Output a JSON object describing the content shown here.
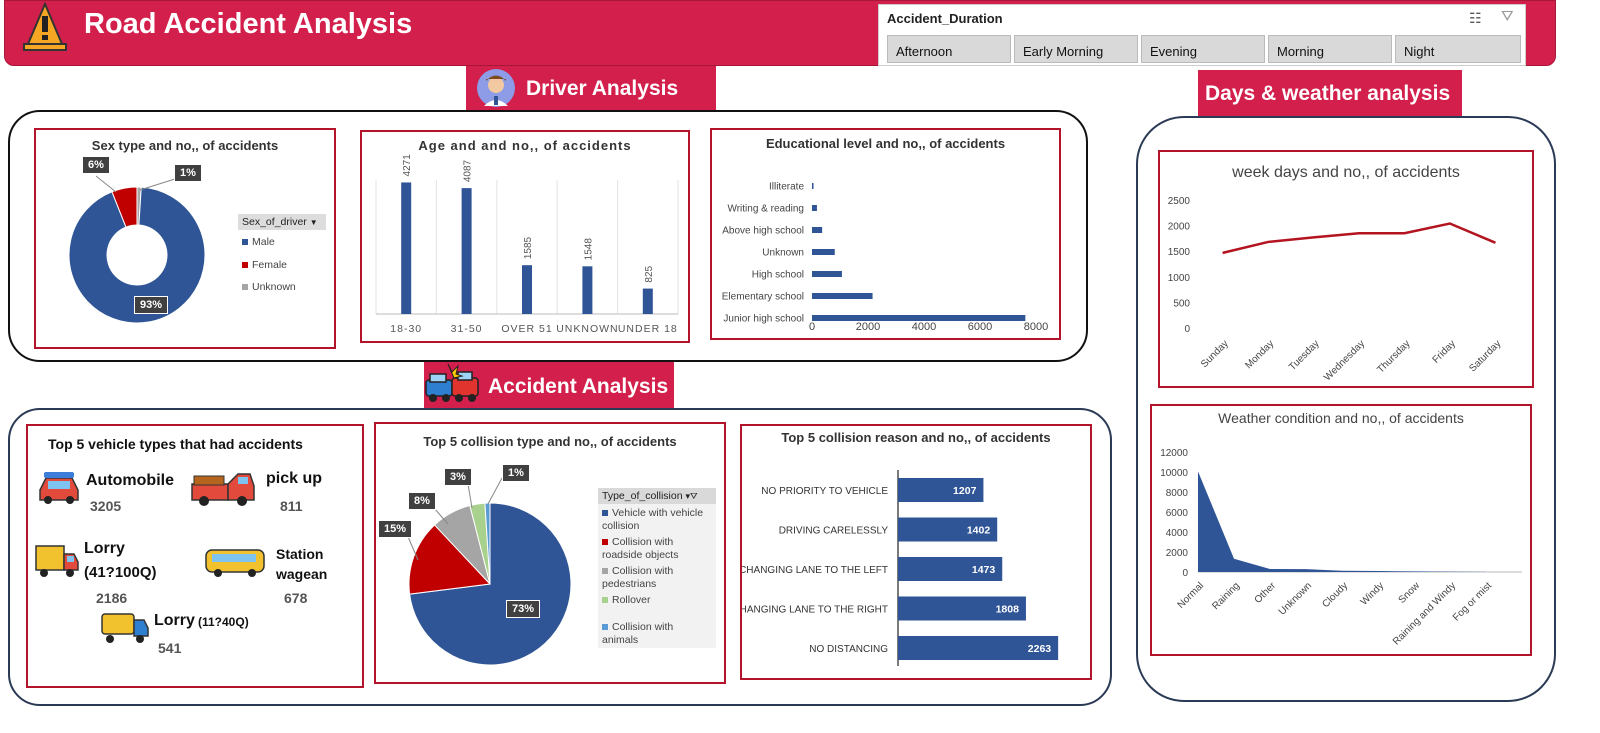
{
  "header": {
    "title": "Road Accident Analysis"
  },
  "slicer": {
    "title": "Accident_Duration",
    "options": [
      "Afternoon",
      "Early Morning",
      "Evening",
      "Morning",
      "Night"
    ]
  },
  "sections": {
    "driver": "Driver Analysis",
    "accident": "Accident Analysis",
    "days": "Days & weather analysis"
  },
  "colors": {
    "accent": "#d31f4b",
    "blue": "#2f5597",
    "red": "#c00000",
    "gray": "#a5a5a5",
    "green": "#a9d18e",
    "lightblue": "#5b9bd5"
  },
  "sex_legend_header": "Sex_of_driver",
  "collision_legend_header": "Type_of_collision",
  "vehicles": {
    "title": "Top 5 vehicle types that had accidents",
    "items": [
      {
        "name": "Automobile",
        "value": "3205"
      },
      {
        "name": "pick up",
        "value": "811"
      },
      {
        "name": "Lorry",
        "name2": "(41?100Q)",
        "value": "2186"
      },
      {
        "name": "Station",
        "name2": "wagean",
        "value": "678"
      },
      {
        "name": "Lorry",
        "name2": "(11?40Q)",
        "value": "541"
      }
    ]
  },
  "chart_data": [
    {
      "type": "pie",
      "variant": "donut",
      "title": "Sex type and no,, of accidents",
      "categories": [
        "Male",
        "Female",
        "Unknown"
      ],
      "values": [
        93,
        6,
        1
      ],
      "labels": [
        "93%",
        "6%",
        "1%"
      ]
    },
    {
      "type": "bar",
      "title": "Age and and no,, of accidents",
      "categories": [
        "18-30",
        "31-50",
        "OVER 51",
        "UNKNOWN",
        "UNDER 18"
      ],
      "values": [
        4271,
        4087,
        1585,
        1548,
        825
      ],
      "ylim": [
        0,
        5000
      ]
    },
    {
      "type": "bar",
      "orientation": "horizontal",
      "title": "Educational level and no,, of accidents",
      "categories": [
        "Illiterate",
        "Writing & reading",
        "Above high school",
        "Unknown",
        "High school",
        "Elementary school",
        "Junior high school"
      ],
      "values": [
        45,
        176,
        362,
        813,
        1069,
        2163,
        7619
      ],
      "xlim": [
        0,
        8000
      ],
      "xticks": [
        "0",
        "2000",
        "4000",
        "6000",
        "8000"
      ]
    },
    {
      "type": "pie",
      "title": "Top 5 collision type and no,, of accidents",
      "categories": [
        "Vehicle with vehicle collision",
        "Collision with roadside objects",
        "Collision with pedestrians",
        "Rollover",
        "Collision with animals"
      ],
      "values": [
        73,
        15,
        8,
        3,
        1
      ],
      "labels": [
        "73%",
        "15%",
        "8%",
        "3%",
        "1%"
      ]
    },
    {
      "type": "bar",
      "orientation": "horizontal",
      "title": "Top 5 collision reason and no,, of accidents",
      "categories": [
        "NO PRIORITY TO VEHICLE",
        "DRIVING CARELESSLY",
        "CHANGING LANE TO THE LEFT",
        "CHANGING LANE TO THE RIGHT",
        "NO DISTANCING"
      ],
      "values": [
        1207,
        1402,
        1473,
        1808,
        2263
      ],
      "xlim": [
        0,
        2600
      ]
    },
    {
      "type": "line",
      "title": "week days and no,, of accidents",
      "categories": [
        "Sunday",
        "Monday",
        "Tuesday",
        "Wednesday",
        "Thursday",
        "Friday",
        "Saturday"
      ],
      "values": [
        1467,
        1681,
        1770,
        1851,
        1851,
        2041,
        1666
      ],
      "ylim": [
        0,
        2500
      ],
      "yticks": [
        "0",
        "500",
        "1000",
        "1500",
        "2000",
        "2500"
      ]
    },
    {
      "type": "area",
      "title": "Weather condition and no,, of accidents",
      "categories": [
        "Normal",
        "Raining",
        "Other",
        "Unknown",
        "Cloudy",
        "Windy",
        "Snow",
        "Raining and Windy",
        "Fog or mist"
      ],
      "values": [
        10063,
        1331,
        296,
        292,
        125,
        98,
        61,
        40,
        10
      ],
      "ylim": [
        0,
        12000
      ],
      "yticks": [
        "0",
        "2000",
        "4000",
        "6000",
        "8000",
        "10000",
        "12000"
      ]
    }
  ]
}
